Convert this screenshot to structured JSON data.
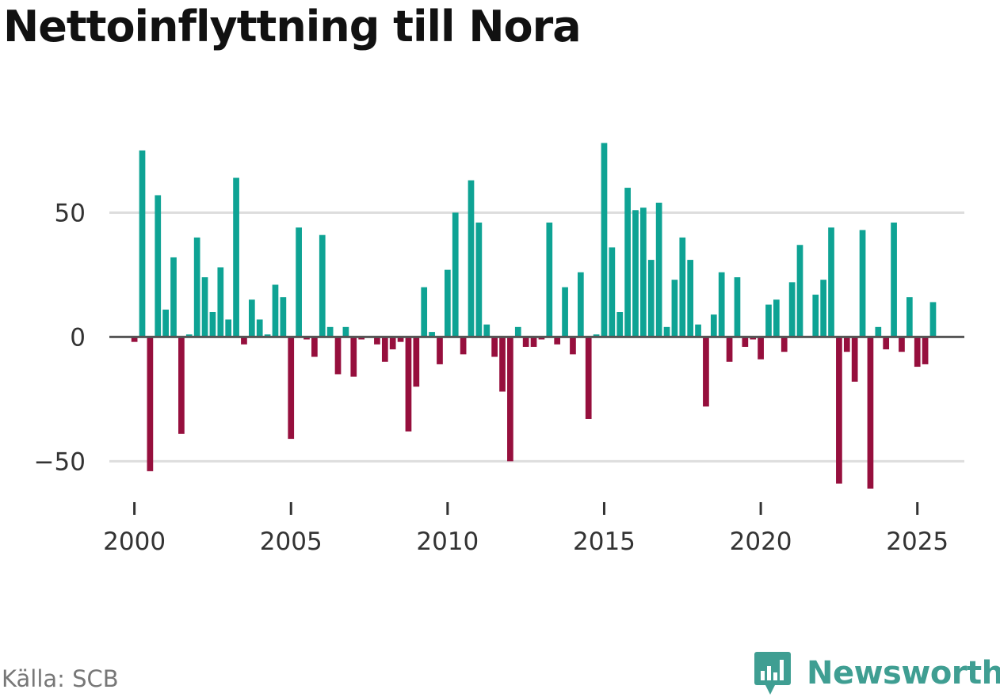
{
  "chart_data": {
    "type": "bar",
    "title": "Nettoinflyttning till Nora",
    "xlabel": "",
    "ylabel": "",
    "ylim": [
      -62,
      82
    ],
    "xlim": [
      1999.2,
      2026.5
    ],
    "y_ticks": [
      50,
      0,
      -50
    ],
    "y_tick_labels": [
      "50",
      "0",
      "−50"
    ],
    "x_ticks": [
      2000,
      2005,
      2010,
      2015,
      2020,
      2025
    ],
    "x_tick_labels": [
      "2000",
      "2005",
      "2010",
      "2015",
      "2020",
      "2025"
    ],
    "grid": true,
    "colors": {
      "positive": "#0ea394",
      "negative": "#960f3d",
      "zero_line": "#555555",
      "grid": "#dddddd"
    },
    "start_quarter": "2000 Q1",
    "values": [
      -2,
      75,
      -54,
      57,
      11,
      32,
      -39,
      1,
      40,
      24,
      10,
      28,
      7,
      64,
      -3,
      15,
      7,
      1,
      21,
      16,
      -41,
      44,
      -1,
      -8,
      41,
      4,
      -15,
      4,
      -16,
      -1,
      0,
      -3,
      -10,
      -5,
      -2,
      -38,
      -20,
      20,
      2,
      -11,
      27,
      50,
      -7,
      63,
      46,
      5,
      -8,
      -22,
      -50,
      4,
      -4,
      -4,
      -1,
      46,
      -3,
      20,
      -7,
      26,
      -33,
      1,
      78,
      36,
      10,
      60,
      51,
      52,
      31,
      54,
      4,
      23,
      40,
      31,
      5,
      -28,
      9,
      26,
      -10,
      24,
      -4,
      -1,
      -9,
      13,
      15,
      -6,
      22,
      37,
      0,
      17,
      23,
      44,
      -59,
      -6,
      -18,
      43,
      -61,
      4,
      -5,
      46,
      -6,
      16,
      -12,
      -11,
      14
    ]
  },
  "footer": {
    "source": "Källa: SCB",
    "brand": "Newsworthy",
    "brand_color": "#3f9e92"
  },
  "icons": {
    "brand_logo": "newsworthy-logo-icon"
  }
}
